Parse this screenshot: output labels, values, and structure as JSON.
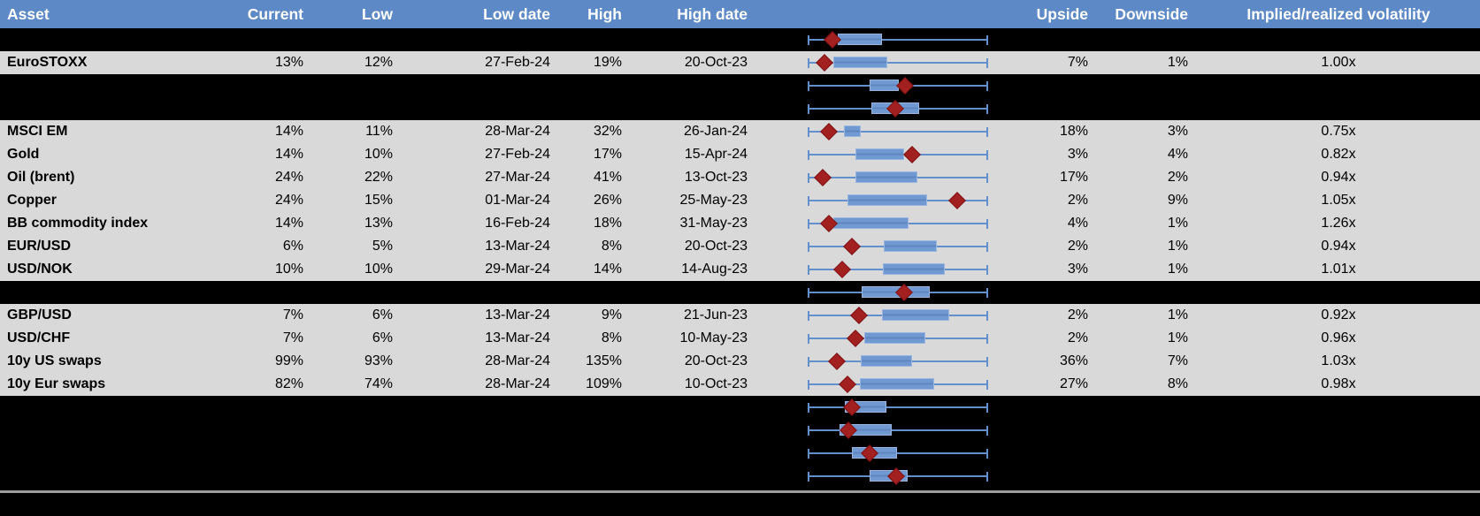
{
  "colors": {
    "header_bg": "#5d8ac7",
    "header_text": "#ffffff",
    "row_gray": "#d9d9d9",
    "separator_black": "#000000",
    "whisker_blue": "#6390cd",
    "box_fill_blue": "#7099d2",
    "box_border_blue": "#9ab5e0",
    "diamond_red": "#a32020",
    "bottom_line_gray": "#9d9d9d"
  },
  "header": {
    "columns": [
      {
        "key": "asset",
        "label": "Asset"
      },
      {
        "key": "current",
        "label": "Current"
      },
      {
        "key": "low",
        "label": "Low"
      },
      {
        "key": "low_date",
        "label": "Low date"
      },
      {
        "key": "high",
        "label": "High"
      },
      {
        "key": "high_date",
        "label": "High date"
      },
      {
        "key": "chart",
        "label": ""
      },
      {
        "key": "upside",
        "label": "Upside"
      },
      {
        "key": "downside",
        "label": "Downside"
      },
      {
        "key": "vol",
        "label": "Implied/realized volatility"
      }
    ]
  },
  "chart_data": {
    "type": "boxplot",
    "orientation": "horizontal",
    "description": "Per-row normalized 52-week volatility range: whiskers span the full range (0-100% of track), blue box = interquartile band, red diamond = current level. Geometry per row is in rows[].box as percent of track.",
    "track_percent_range": [
      0,
      100
    ]
  },
  "rows": [
    {
      "type": "separator",
      "box": {
        "lo": 16.5,
        "hi": 41.0,
        "d": 13.7
      }
    },
    {
      "type": "data",
      "asset": "EuroSTOXX",
      "current": "13%",
      "low": "12%",
      "low_date": "27-Feb-24",
      "high": "19%",
      "high_date": "20-Oct-23",
      "upside": "7%",
      "downside": "1%",
      "vol": "1.00x",
      "box": {
        "lo": 14.0,
        "hi": 44.3,
        "d": 9.5
      }
    },
    {
      "type": "separator",
      "box": {
        "lo": 34.5,
        "hi": 50.5,
        "d": 54.0
      }
    },
    {
      "type": "separator",
      "box": {
        "lo": 35.3,
        "hi": 62.0,
        "d": 48.3
      }
    },
    {
      "type": "data",
      "asset": "MSCI EM",
      "current": "14%",
      "low": "11%",
      "low_date": "28-Mar-24",
      "high": "32%",
      "high_date": "26-Jan-24",
      "upside": "18%",
      "downside": "3%",
      "vol": "0.75x",
      "box": {
        "lo": 20.0,
        "hi": 29.5,
        "d": 11.8
      }
    },
    {
      "type": "data",
      "asset": "Gold",
      "current": "14%",
      "low": "10%",
      "low_date": "27-Feb-24",
      "high": "17%",
      "high_date": "15-Apr-24",
      "upside": "3%",
      "downside": "4%",
      "vol": "0.82x",
      "box": {
        "lo": 26.5,
        "hi": 53.5,
        "d": 58.0
      }
    },
    {
      "type": "data",
      "asset": "Oil (brent)",
      "current": "24%",
      "low": "22%",
      "low_date": "27-Mar-24",
      "high": "41%",
      "high_date": "13-Oct-23",
      "upside": "17%",
      "downside": "2%",
      "vol": "0.94x",
      "box": {
        "lo": 26.5,
        "hi": 61.0,
        "d": 8.3
      }
    },
    {
      "type": "data",
      "asset": "Copper",
      "current": "24%",
      "low": "15%",
      "low_date": "01-Mar-24",
      "high": "26%",
      "high_date": "25-May-23",
      "upside": "2%",
      "downside": "9%",
      "vol": "1.05x",
      "box": {
        "lo": 22.0,
        "hi": 66.0,
        "d": 83.0
      }
    },
    {
      "type": "data",
      "asset": "BB commodity index",
      "current": "14%",
      "low": "13%",
      "low_date": "16-Feb-24",
      "high": "18%",
      "high_date": "31-May-23",
      "upside": "4%",
      "downside": "1%",
      "vol": "1.26x",
      "box": {
        "lo": 14.0,
        "hi": 56.0,
        "d": 11.8
      }
    },
    {
      "type": "data",
      "asset": "EUR/USD",
      "current": "6%",
      "low": "5%",
      "low_date": "13-Mar-24",
      "high": "8%",
      "high_date": "20-Oct-23",
      "upside": "2%",
      "downside": "1%",
      "vol": "0.94x",
      "box": {
        "lo": 42.0,
        "hi": 71.5,
        "d": 24.5
      }
    },
    {
      "type": "data",
      "asset": "USD/NOK",
      "current": "10%",
      "low": "10%",
      "low_date": "29-Mar-24",
      "high": "14%",
      "high_date": "14-Aug-23",
      "upside": "3%",
      "downside": "1%",
      "vol": "1.01x",
      "box": {
        "lo": 41.5,
        "hi": 75.8,
        "d": 19.0
      }
    },
    {
      "type": "separator",
      "box": {
        "lo": 30.0,
        "hi": 67.5,
        "d": 53.3
      }
    },
    {
      "type": "data",
      "asset": "GBP/USD",
      "current": "7%",
      "low": "6%",
      "low_date": "13-Mar-24",
      "high": "9%",
      "high_date": "21-Jun-23",
      "upside": "2%",
      "downside": "1%",
      "vol": "0.92x",
      "box": {
        "lo": 41.0,
        "hi": 78.5,
        "d": 28.3
      }
    },
    {
      "type": "data",
      "asset": "USD/CHF",
      "current": "7%",
      "low": "6%",
      "low_date": "13-Mar-24",
      "high": "8%",
      "high_date": "10-May-23",
      "upside": "2%",
      "downside": "1%",
      "vol": "0.96x",
      "box": {
        "lo": 31.3,
        "hi": 65.0,
        "d": 26.4
      }
    },
    {
      "type": "data",
      "asset": "10y US swaps",
      "current": "99%",
      "low": "93%",
      "low_date": "28-Mar-24",
      "high": "135%",
      "high_date": "20-Oct-23",
      "upside": "36%",
      "downside": "7%",
      "vol": "1.03x",
      "box": {
        "lo": 29.2,
        "hi": 58.0,
        "d": 16.2
      }
    },
    {
      "type": "data",
      "asset": "10y Eur swaps",
      "current": "82%",
      "low": "74%",
      "low_date": "28-Mar-24",
      "high": "109%",
      "high_date": "10-Oct-23",
      "upside": "27%",
      "downside": "8%",
      "vol": "0.98x",
      "box": {
        "lo": 29.0,
        "hi": 70.0,
        "d": 22.0
      }
    },
    {
      "type": "separator",
      "box": {
        "lo": 20.5,
        "hi": 43.5,
        "d": 24.5
      }
    },
    {
      "type": "separator",
      "box": {
        "lo": 17.7,
        "hi": 46.5,
        "d": 22.7
      }
    },
    {
      "type": "separator",
      "box": {
        "lo": 24.5,
        "hi": 49.7,
        "d": 34.5
      }
    },
    {
      "type": "separator",
      "box": {
        "lo": 34.5,
        "hi": 55.2,
        "d": 49.0
      }
    }
  ]
}
